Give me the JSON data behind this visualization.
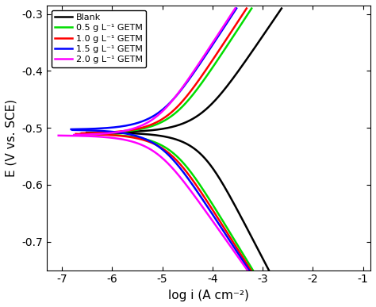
{
  "title": "",
  "xlabel": "log i (A cm⁻²)",
  "ylabel": "E (V vs. SCE)",
  "xlim": [
    -7.3,
    -0.85
  ],
  "ylim": [
    -0.75,
    -0.285
  ],
  "xticks": [
    -7,
    -6,
    -5,
    -4,
    -3,
    -2,
    -1
  ],
  "yticks": [
    -0.7,
    -0.6,
    -0.5,
    -0.4,
    -0.3
  ],
  "background_color": "#ffffff",
  "curves": [
    {
      "label": "Blank",
      "color": "#000000",
      "E_corr": -0.508,
      "log_i_corr": -4.3,
      "ba": 0.13,
      "bc": 0.17,
      "E_min": -0.75,
      "E_max": -0.29
    },
    {
      "label": "0.5 g L⁻¹ GETM",
      "color": "#00dd00",
      "E_corr": -0.51,
      "log_i_corr": -4.85,
      "ba": 0.135,
      "bc": 0.145,
      "E_min": -0.75,
      "E_max": -0.29
    },
    {
      "label": "1.0 g L⁻¹ GETM",
      "color": "#ff0000",
      "E_corr": -0.51,
      "log_i_corr": -4.95,
      "ba": 0.135,
      "bc": 0.14,
      "E_min": -0.75,
      "E_max": -0.29
    },
    {
      "label": "1.5 g L⁻¹ GETM",
      "color": "#0000ff",
      "E_corr": -0.503,
      "log_i_corr": -5.1,
      "ba": 0.135,
      "bc": 0.135,
      "E_min": -0.75,
      "E_max": -0.29
    },
    {
      "label": "2.0 g L⁻¹ GETM",
      "color": "#ff00ff",
      "E_corr": -0.513,
      "log_i_corr": -5.2,
      "ba": 0.135,
      "bc": 0.125,
      "E_min": -0.75,
      "E_max": -0.29
    }
  ]
}
